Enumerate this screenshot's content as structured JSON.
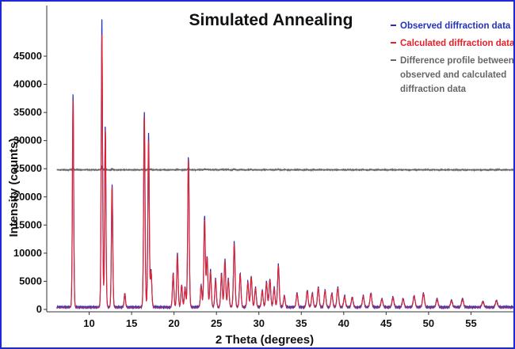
{
  "chart_data": {
    "type": "line",
    "title": "Simulated Annealing",
    "xlabel": "2 Theta (degrees)",
    "ylabel": "Intensity (counts)",
    "xlim": [
      5,
      60
    ],
    "ylim": [
      -1000,
      50000
    ],
    "x_ticks": [
      10,
      15,
      20,
      25,
      30,
      35,
      40,
      45,
      50,
      55
    ],
    "y_ticks": [
      0,
      5000,
      10000,
      15000,
      20000,
      25000,
      30000,
      35000,
      40000,
      45000
    ],
    "legend_position": "top-right",
    "colors": {
      "observed": "#2233bb",
      "calculated": "#e8202a",
      "difference": "#666666"
    },
    "background_level": 400,
    "difference_offset": 24800,
    "peaks": [
      [
        8.1,
        38000
      ],
      [
        11.5,
        50000
      ],
      [
        11.9,
        32500
      ],
      [
        12.7,
        22000
      ],
      [
        14.2,
        2500
      ],
      [
        16.5,
        35000
      ],
      [
        17.0,
        30500
      ],
      [
        17.3,
        6500
      ],
      [
        19.9,
        6000
      ],
      [
        20.4,
        9500
      ],
      [
        20.9,
        4000
      ],
      [
        21.3,
        3500
      ],
      [
        21.7,
        27000
      ],
      [
        23.2,
        4000
      ],
      [
        23.6,
        16000
      ],
      [
        23.9,
        9000
      ],
      [
        24.3,
        6500
      ],
      [
        24.9,
        5000
      ],
      [
        25.6,
        6000
      ],
      [
        26.0,
        8500
      ],
      [
        26.4,
        5000
      ],
      [
        27.1,
        11500
      ],
      [
        27.8,
        6000
      ],
      [
        28.7,
        4500
      ],
      [
        29.1,
        5500
      ],
      [
        29.6,
        3500
      ],
      [
        30.4,
        3000
      ],
      [
        30.9,
        4500
      ],
      [
        31.3,
        5000
      ],
      [
        31.8,
        3500
      ],
      [
        32.3,
        7500
      ],
      [
        33.0,
        2000
      ],
      [
        34.5,
        2500
      ],
      [
        35.7,
        3000
      ],
      [
        36.3,
        2500
      ],
      [
        37.0,
        3500
      ],
      [
        37.8,
        3000
      ],
      [
        38.6,
        2500
      ],
      [
        39.3,
        3500
      ],
      [
        40.1,
        2000
      ],
      [
        41.0,
        1800
      ],
      [
        42.3,
        2000
      ],
      [
        43.2,
        2500
      ],
      [
        44.5,
        1500
      ],
      [
        45.8,
        1800
      ],
      [
        47.0,
        1500
      ],
      [
        48.3,
        2000
      ],
      [
        49.4,
        2500
      ],
      [
        51.0,
        1500
      ],
      [
        52.7,
        1200
      ],
      [
        54.0,
        1500
      ],
      [
        56.4,
        1000
      ],
      [
        58.0,
        1200
      ]
    ],
    "series": [
      {
        "name": "Observed diffraction data",
        "values_ref": "peaks"
      },
      {
        "name": "Calculated diffraction data",
        "values_ref": "peaks"
      },
      {
        "name": "Difference profile between observed and calculated diffraction data",
        "values_ref": "peaks"
      }
    ],
    "legend": [
      {
        "label": "Observed diffraction data",
        "color": "#2233bb"
      },
      {
        "label": "Calculated diffraction data",
        "color": "#e8202a"
      },
      {
        "label_lines": [
          "Difference profile between",
          "observed and calculated",
          "diffraction data"
        ],
        "color": "#666666"
      }
    ]
  }
}
